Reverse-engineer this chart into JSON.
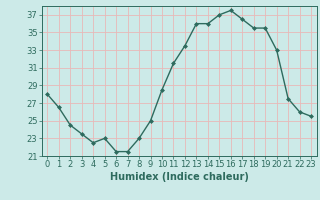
{
  "x": [
    0,
    1,
    2,
    3,
    4,
    5,
    6,
    7,
    8,
    9,
    10,
    11,
    12,
    13,
    14,
    15,
    16,
    17,
    18,
    19,
    20,
    21,
    22,
    23
  ],
  "y": [
    28,
    26.5,
    24.5,
    23.5,
    22.5,
    23,
    21.5,
    21.5,
    23,
    25,
    28.5,
    31.5,
    33.5,
    36,
    36,
    37,
    37.5,
    36.5,
    35.5,
    35.5,
    33,
    27.5,
    26,
    25.5
  ],
  "line_color": "#2e6b5e",
  "marker": "D",
  "marker_size": 2.0,
  "bg_color": "#cceae8",
  "grid_color": "#e8b8b8",
  "xlabel": "Humidex (Indice chaleur)",
  "xlim": [
    -0.5,
    23.5
  ],
  "ylim": [
    21,
    38
  ],
  "yticks": [
    21,
    23,
    25,
    27,
    29,
    31,
    33,
    35,
    37
  ],
  "xticks": [
    0,
    1,
    2,
    3,
    4,
    5,
    6,
    7,
    8,
    9,
    10,
    11,
    12,
    13,
    14,
    15,
    16,
    17,
    18,
    19,
    20,
    21,
    22,
    23
  ],
  "xlabel_fontsize": 7,
  "tick_fontsize": 6,
  "line_width": 1.0
}
